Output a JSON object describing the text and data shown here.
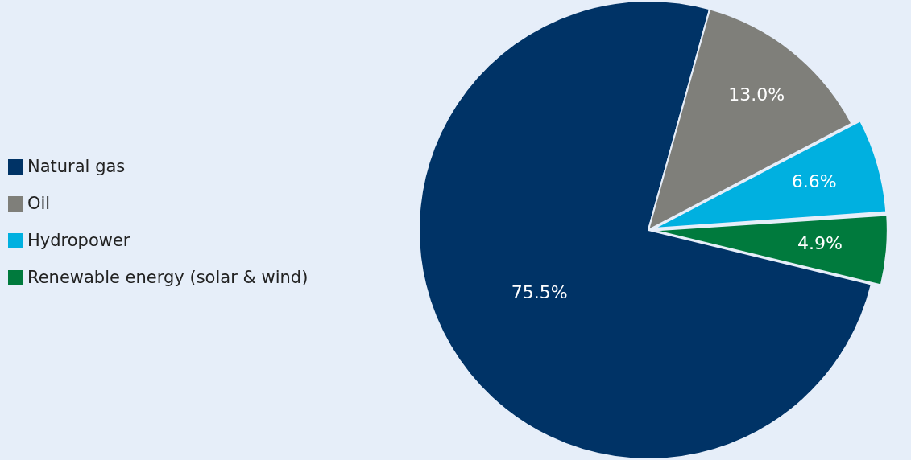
{
  "chart_data": {
    "type": "pie",
    "categories": [
      "Natural gas",
      "Oil",
      "Hydropower",
      "Renewable energy (solar & wind)"
    ],
    "values": [
      75.5,
      13.0,
      6.6,
      4.9
    ],
    "colors": [
      "#003366",
      "#7f7f7a",
      "#00b0e0",
      "#007a3d"
    ],
    "value_labels": [
      "75.5%",
      "13.0%",
      "6.6%",
      "4.9%"
    ],
    "legend": "left"
  }
}
